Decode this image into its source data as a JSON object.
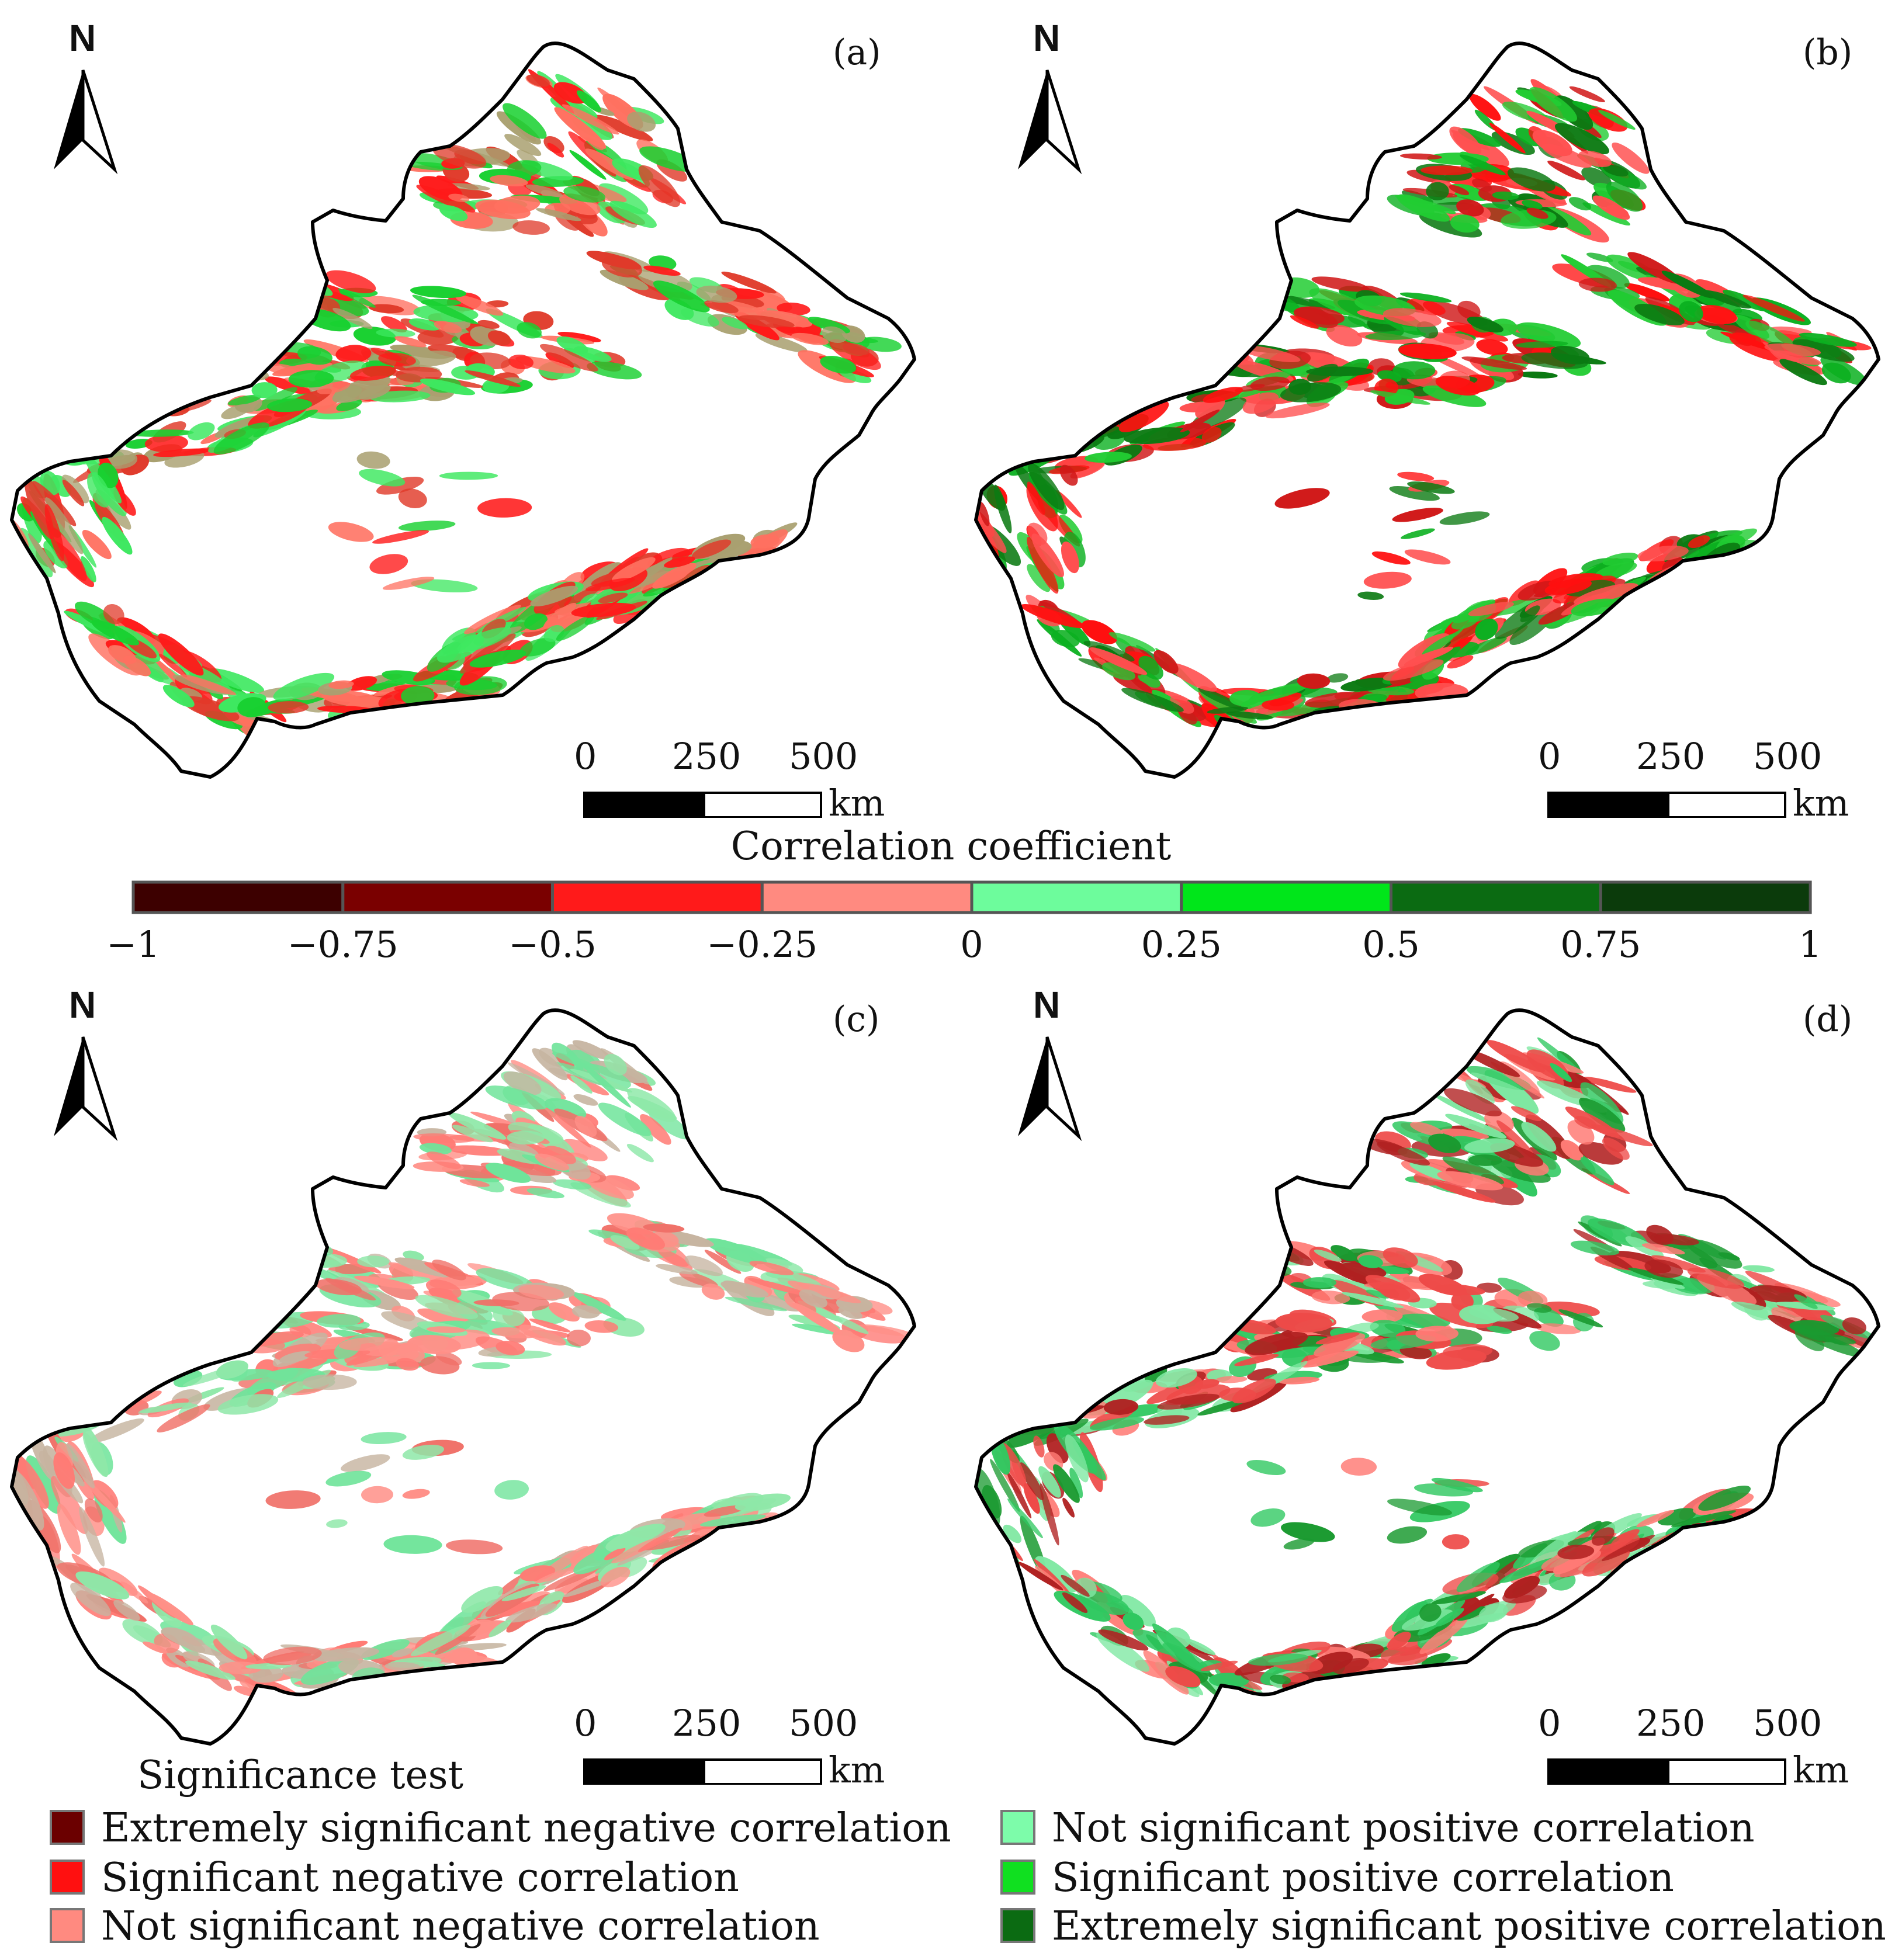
{
  "panels": [
    {
      "id": "a",
      "label": "(a)",
      "variant": 0
    },
    {
      "id": "b",
      "label": "(b)",
      "variant": 1
    },
    {
      "id": "c",
      "label": "(c)",
      "variant": 2
    },
    {
      "id": "d",
      "label": "(d)",
      "variant": 3
    }
  ],
  "north_label": "N",
  "scalebar": {
    "ticks": [
      "0",
      "250",
      "500"
    ],
    "unit": "km"
  },
  "colorbar": {
    "title": "Correlation coefficient",
    "ticks": [
      "−1",
      "−0.75",
      "−0.5",
      "−0.25",
      "0",
      "0.25",
      "0.5",
      "0.75",
      "1"
    ],
    "colors": [
      "#3d0000",
      "#7a0000",
      "#ff1a1a",
      "#ff8a80",
      "#6dfc9c",
      "#00e61a",
      "#0b6b12",
      "#0b3b0b"
    ]
  },
  "significance_legend": {
    "title": "Significance test",
    "items": [
      {
        "label": "Extremely significant negative correlation",
        "color": "#6b0000"
      },
      {
        "label": "Significant negative correlation",
        "color": "#ff1010"
      },
      {
        "label": "Not significant negative correlation",
        "color": "#ff8a80"
      },
      {
        "label": "Not significant positive correlation",
        "color": "#7dfcaa"
      },
      {
        "label": "Significant positive correlation",
        "color": "#10e020"
      },
      {
        "label": "Extremely significant positive correlation",
        "color": "#0b6b12"
      }
    ]
  },
  "palettes": {
    "a": [
      "#ff1a1a",
      "#e03a2a",
      "#a9a070",
      "#3ee860",
      "#18d030",
      "#ff7060"
    ],
    "b": [
      "#ff1010",
      "#d01818",
      "#22cc33",
      "#0bb020",
      "#0b7a12",
      "#ff5050"
    ],
    "c": [
      "#ff9088",
      "#ff7b75",
      "#8ee8a8",
      "#6fe49a",
      "#f07068",
      "#c6b4a0"
    ],
    "d": [
      "#ff7b75",
      "#ee4a48",
      "#7fe8a2",
      "#2fc860",
      "#1a9a30",
      "#b02020"
    ]
  }
}
